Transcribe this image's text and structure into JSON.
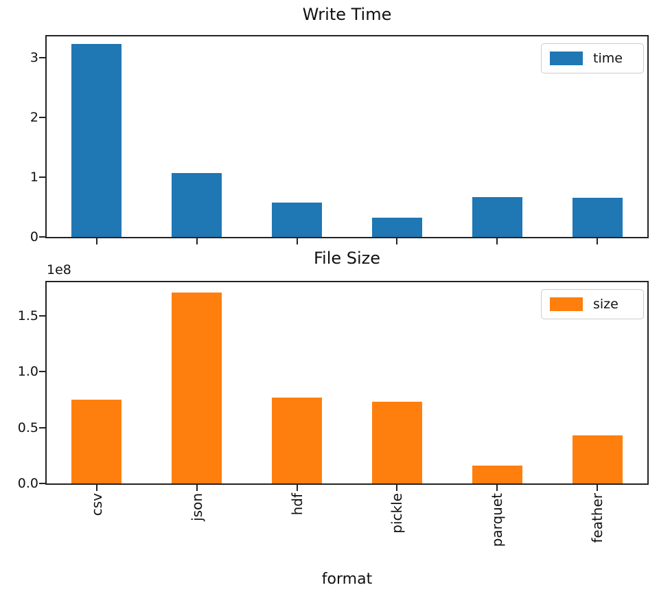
{
  "figure": {
    "background": "#ffffff",
    "axis_color": "#222222",
    "text_color": "#111111"
  },
  "chart_data": [
    {
      "type": "bar",
      "title": "Write Time",
      "categories": [
        "csv",
        "json",
        "hdf",
        "pickle",
        "parquet",
        "feather"
      ],
      "values": [
        3.23,
        1.07,
        0.58,
        0.32,
        0.67,
        0.66
      ],
      "bar_color": "#1f77b4",
      "legend": {
        "label": "time",
        "position": "upper right"
      },
      "xlabel": "",
      "ylabel": "",
      "ylim": [
        0,
        3.36
      ],
      "yticks": [
        0,
        1,
        2,
        3
      ],
      "ytick_labels": [
        "0",
        "1",
        "2",
        "3"
      ],
      "show_x_tick_labels": false,
      "grid": false
    },
    {
      "type": "bar",
      "title": "File Size",
      "categories": [
        "csv",
        "json",
        "hdf",
        "pickle",
        "parquet",
        "feather"
      ],
      "values": [
        75000000,
        171000000,
        77000000,
        73000000,
        16000000,
        43000000
      ],
      "bar_color": "#ff7f0e",
      "legend": {
        "label": "size",
        "position": "upper right"
      },
      "xlabel": "format",
      "ylabel": "",
      "offset_text": "1e8",
      "ylim": [
        0,
        180000000
      ],
      "yticks": [
        0,
        50000000,
        100000000,
        150000000
      ],
      "ytick_labels": [
        "0.0",
        "0.5",
        "1.0",
        "1.5"
      ],
      "show_x_tick_labels": true,
      "grid": false
    }
  ]
}
